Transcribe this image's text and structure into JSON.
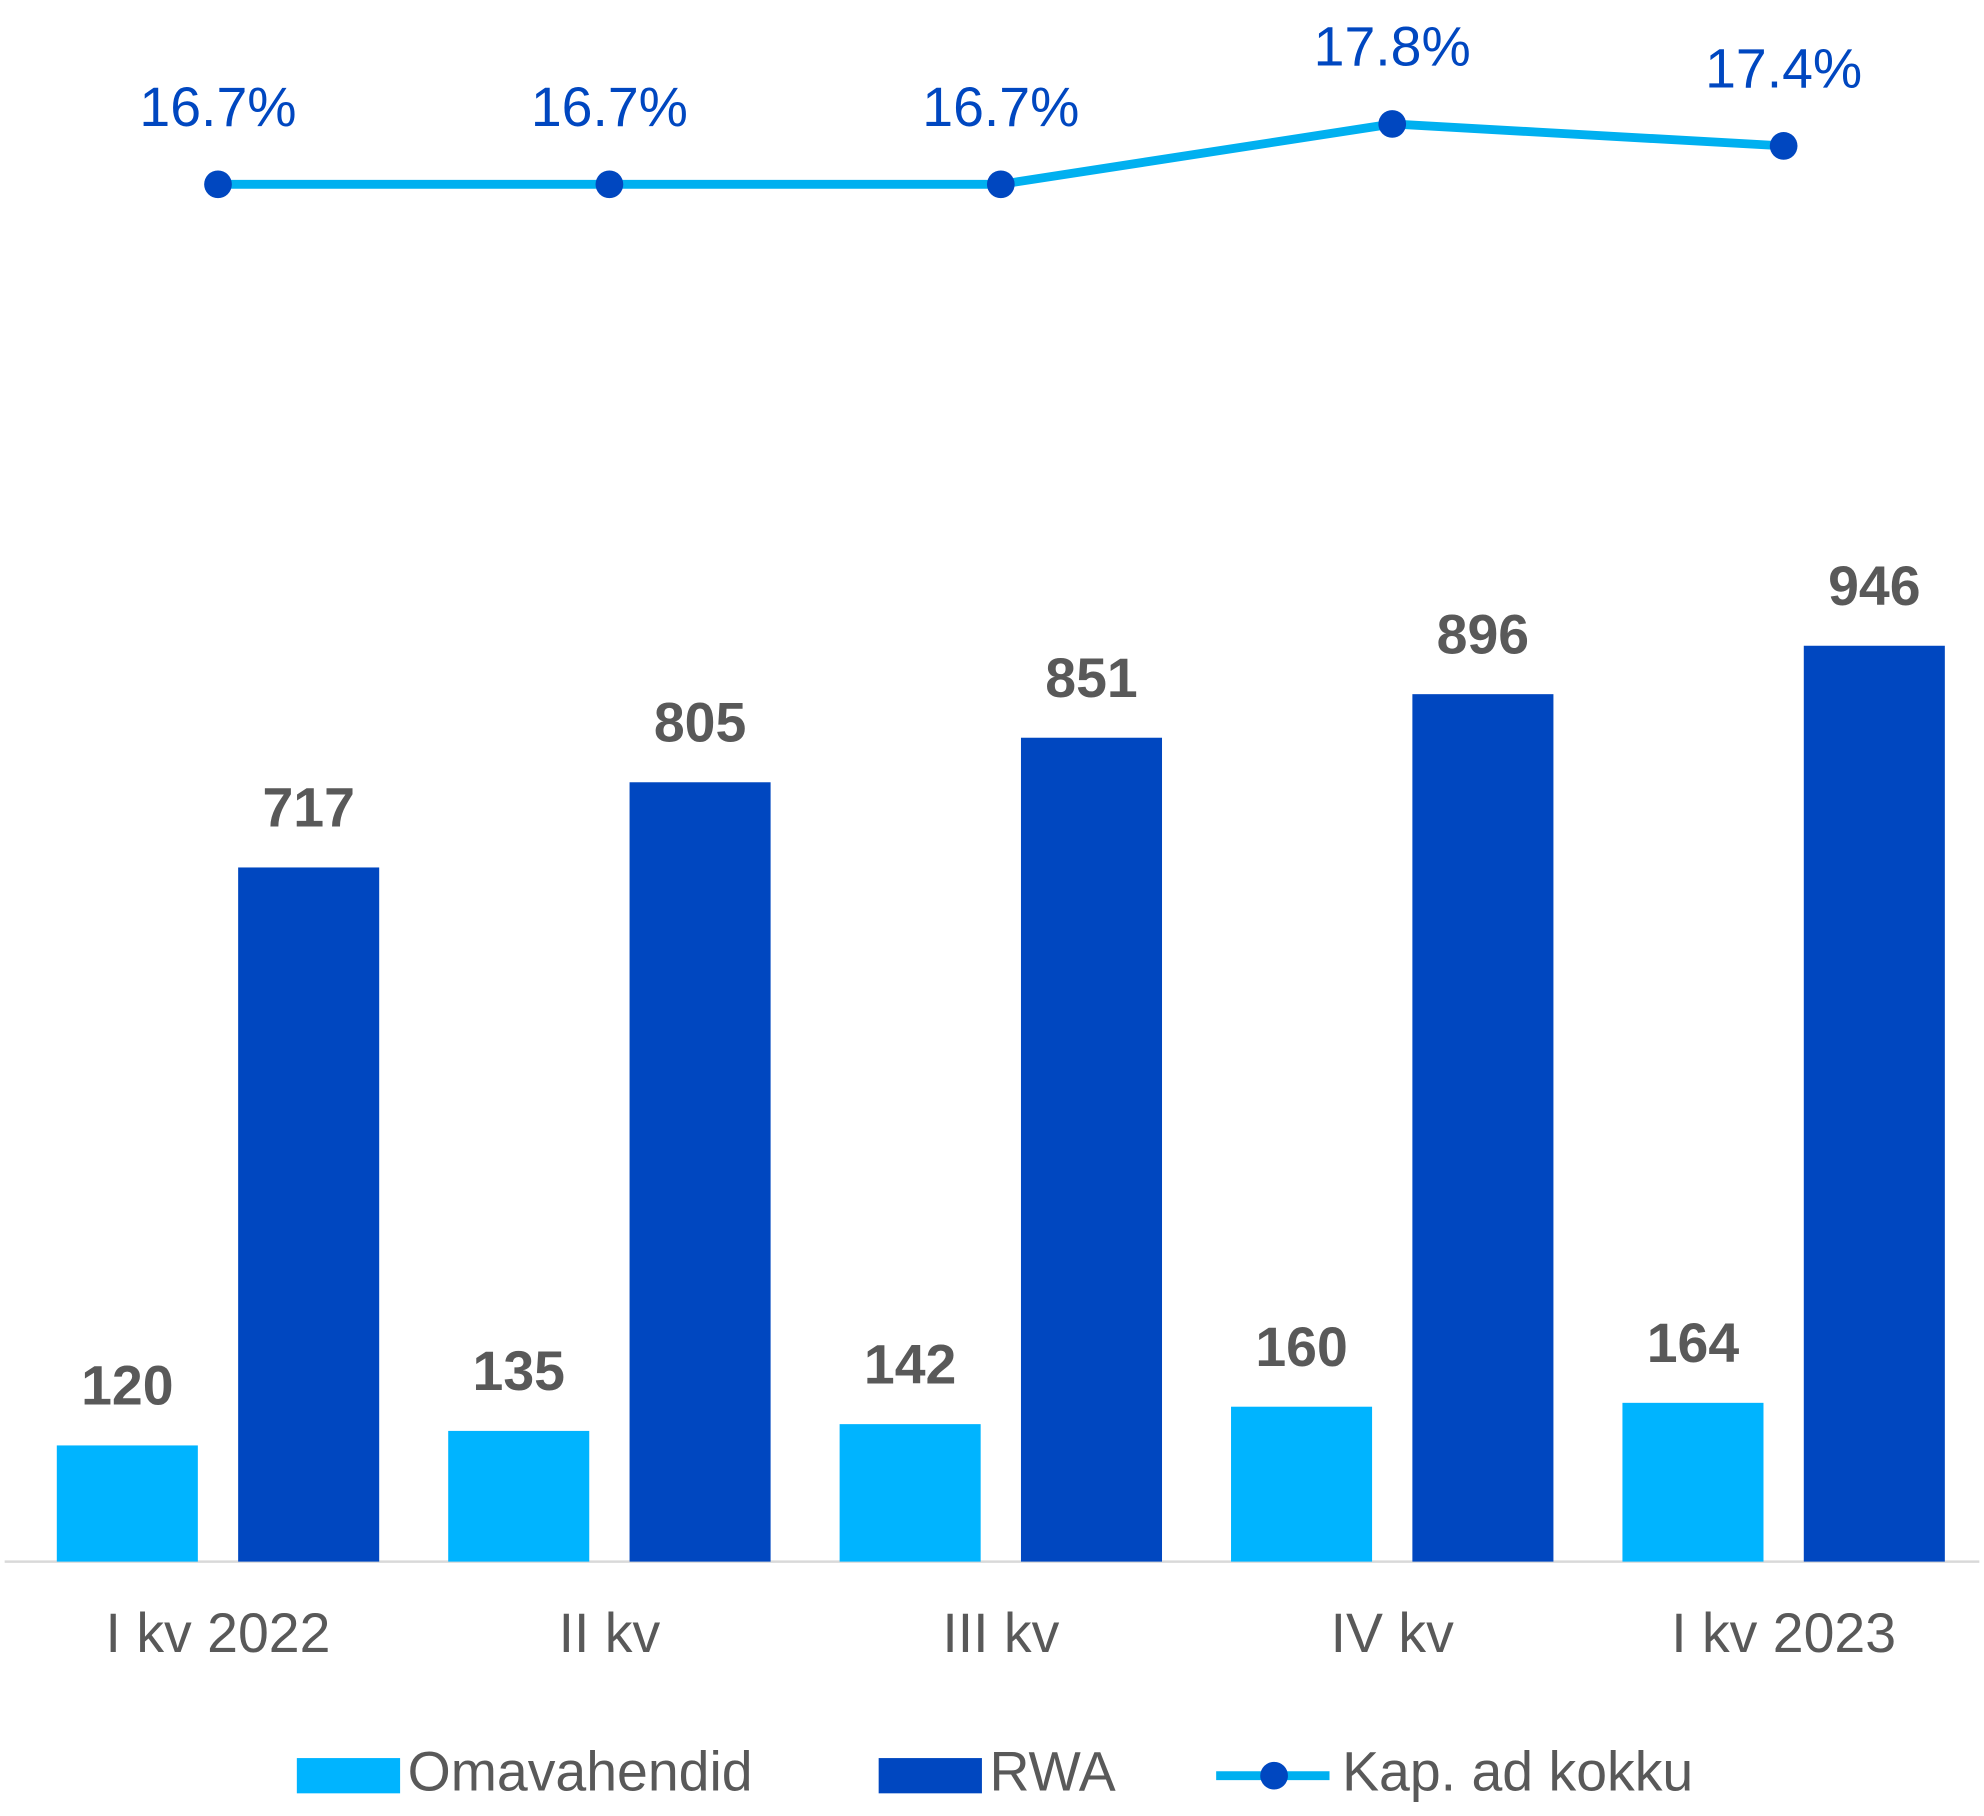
{
  "chart_data": {
    "type": "bar",
    "categories": [
      "I kv 2022",
      "II kv",
      "III kv",
      "IV kv",
      "I kv 2023"
    ],
    "series": [
      {
        "name": "Omavahendid",
        "type": "bar",
        "color": "#00b4ff",
        "values": [
          120,
          135,
          142,
          160,
          164
        ]
      },
      {
        "name": "RWA",
        "type": "bar",
        "color": "#0047c0",
        "values": [
          717,
          805,
          851,
          896,
          946
        ]
      },
      {
        "name": "Kap. ad kokku",
        "type": "line",
        "axis": "y2",
        "color": "#00b0f0",
        "marker_color": "#0047c0",
        "values": [
          16.7,
          16.7,
          16.7,
          17.8,
          17.4
        ],
        "value_labels": [
          "16.7%",
          "16.7%",
          "16.7%",
          "17.8%",
          "17.4%"
        ]
      }
    ],
    "ylim": [
      0,
      1587
    ],
    "y2lim": [
      -8.4,
      19.6
    ],
    "legend": "bottom"
  }
}
